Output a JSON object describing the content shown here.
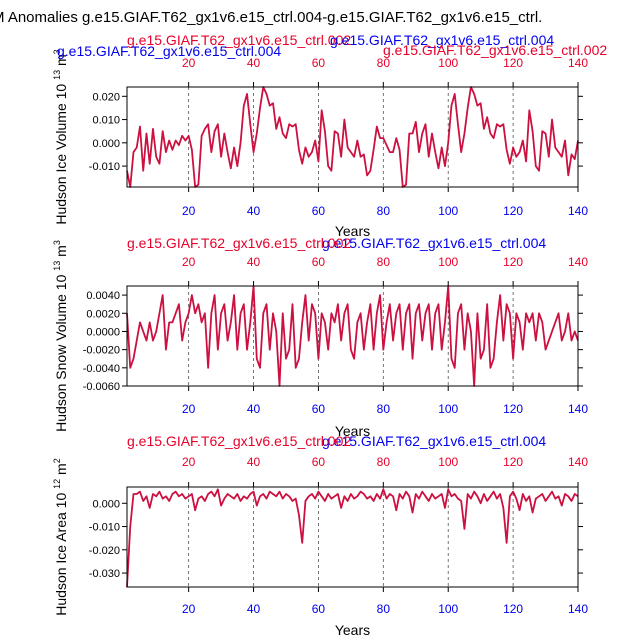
{
  "figure": {
    "title": "M Anomalies g.e15.GIAF.T62_gx1v6.e15_ctrl.004-g.e15.GIAF.T62_gx1v6.e15_ctrl.",
    "colors": {
      "red": "#e8002a",
      "blue": "#0000ee",
      "line": "#cc1040",
      "axis": "#000000",
      "grid": "#555555"
    }
  },
  "chart_data": [
    {
      "type": "line",
      "case_red": "g.e15.GIAF.T62_gx1v6.e15_ctrl.002",
      "case_blue": "g.e15.GIAF.T62_gx1v6.e15_ctrl.004",
      "ylabel": "Hudson Ice Volume 10",
      "ylabel_exp": "13",
      "ylabel_unit": "m",
      "ylabel_unit_exp": "3",
      "xlabel": "Years",
      "xlim": [
        1,
        140
      ],
      "ylim": [
        -0.019,
        0.024
      ],
      "yticks": [
        -0.01,
        0.0,
        0.01,
        0.02
      ],
      "yticklabels": [
        "-0.010",
        "0.000",
        "0.010",
        "0.020"
      ],
      "xticks": [
        20,
        40,
        60,
        80,
        100,
        120,
        140
      ],
      "xticklabels": [
        "20",
        "40",
        "60",
        "80",
        "100",
        "120",
        "140"
      ],
      "grid": "vertical dashed at x ticks",
      "x": [
        1,
        2,
        3,
        4,
        5,
        6,
        7,
        8,
        9,
        10,
        11,
        12,
        13,
        14,
        15,
        16,
        17,
        18,
        19,
        20,
        21,
        22,
        23,
        24,
        25,
        26,
        27,
        28,
        29,
        30,
        31,
        32,
        33,
        34,
        35,
        36,
        37,
        38,
        39,
        40,
        41,
        42,
        43,
        44,
        45,
        46,
        47,
        48,
        49,
        50,
        51,
        52,
        53,
        54,
        55,
        56,
        57,
        58,
        59,
        60,
        61,
        62,
        63,
        64,
        65,
        66,
        67,
        68,
        69,
        70,
        71,
        72,
        73,
        74,
        75,
        76,
        77,
        78,
        79,
        80,
        81,
        82,
        83,
        84,
        85,
        86,
        87,
        88,
        89,
        90,
        91,
        92,
        93,
        94,
        95,
        96,
        97,
        98,
        99,
        100,
        101,
        102,
        103,
        104,
        105,
        106,
        107,
        108,
        109,
        110,
        111,
        112,
        113,
        114,
        115,
        116,
        117,
        118,
        119,
        120,
        121,
        122,
        123,
        124,
        125,
        126,
        127,
        128,
        129,
        130,
        131,
        132,
        133,
        134,
        135,
        136,
        137,
        138,
        139,
        140
      ],
      "values": [
        -0.012,
        -0.019,
        -0.004,
        -0.002,
        0.007,
        -0.012,
        0.004,
        -0.009,
        0.006,
        -0.006,
        -0.009,
        0.005,
        -0.004,
        0.001,
        -0.003,
        0.001,
        -0.001,
        0.003,
        0.001,
        0.003,
        -0.003,
        -0.019,
        -0.018,
        0.003,
        0.006,
        0.008,
        -0.004,
        0.005,
        0.008,
        -0.006,
        0.004,
        -0.004,
        -0.011,
        -0.002,
        -0.01,
        0.0,
        0.016,
        0.021,
        0.008,
        -0.004,
        0.004,
        0.015,
        0.024,
        0.021,
        0.016,
        0.017,
        0.006,
        0.011,
        0.004,
        0.002,
        0.008,
        0.007,
        0.008,
        -0.003,
        -0.009,
        -0.002,
        -0.006,
        -0.004,
        0.001,
        -0.008,
        0.014,
        0.005,
        -0.01,
        -0.012,
        0.005,
        0.004,
        -0.006,
        0.01,
        -0.002,
        -0.004,
        -0.006,
        0.001,
        -0.006,
        -0.005,
        -0.014,
        -0.012,
        -0.003,
        0.007,
        0.002,
        0.002,
        -0.001,
        -0.004,
        -0.004,
        0.002,
        -0.003,
        -0.019,
        -0.018,
        0.004,
        0.004,
        0.009,
        -0.004,
        0.004,
        0.008,
        -0.006,
        0.004,
        -0.004,
        -0.011,
        -0.002,
        -0.01,
        0.0,
        0.016,
        0.021,
        0.008,
        -0.004,
        0.004,
        0.015,
        0.024,
        0.021,
        0.016,
        0.017,
        0.006,
        0.011,
        0.004,
        0.002,
        0.008,
        0.007,
        0.008,
        -0.003,
        -0.009,
        -0.002,
        -0.006,
        -0.004,
        0.001,
        -0.008,
        0.014,
        0.005,
        -0.01,
        -0.012,
        0.005,
        0.004,
        -0.006,
        0.01,
        -0.002,
        -0.004,
        -0.006,
        0.001,
        -0.014,
        -0.005,
        -0.007,
        0.001
      ]
    },
    {
      "type": "line",
      "case_red": "g.e15.GIAF.T62_gx1v6.e15_ctrl.002",
      "case_blue": "g.e15.GIAF.T62_gx1v6.e15_ctrl.004",
      "ylabel": "Hudson Snow Volume 10",
      "ylabel_exp": "13",
      "ylabel_unit": "m",
      "ylabel_unit_exp": "3",
      "xlabel": "Years",
      "xlim": [
        1,
        140
      ],
      "ylim": [
        -0.006,
        0.005
      ],
      "yticks": [
        -0.006,
        -0.004,
        -0.002,
        0.0,
        0.002,
        0.004
      ],
      "yticklabels": [
        "-0.0060",
        "-0.0040",
        "-0.0020",
        "0.0000",
        "0.0020",
        "0.0040"
      ],
      "xticks": [
        20,
        40,
        60,
        80,
        100,
        120,
        140
      ],
      "xticklabels": [
        "20",
        "40",
        "60",
        "80",
        "100",
        "120",
        "140"
      ],
      "grid": "vertical dashed at x ticks",
      "x": [
        1,
        2,
        3,
        4,
        5,
        6,
        7,
        8,
        9,
        10,
        11,
        12,
        13,
        14,
        15,
        16,
        17,
        18,
        19,
        20,
        21,
        22,
        23,
        24,
        25,
        26,
        27,
        28,
        29,
        30,
        31,
        32,
        33,
        34,
        35,
        36,
        37,
        38,
        39,
        40,
        41,
        42,
        43,
        44,
        45,
        46,
        47,
        48,
        49,
        50,
        51,
        52,
        53,
        54,
        55,
        56,
        57,
        58,
        59,
        60,
        61,
        62,
        63,
        64,
        65,
        66,
        67,
        68,
        69,
        70,
        71,
        72,
        73,
        74,
        75,
        76,
        77,
        78,
        79,
        80,
        81,
        82,
        83,
        84,
        85,
        86,
        87,
        88,
        89,
        90,
        91,
        92,
        93,
        94,
        95,
        96,
        97,
        98,
        99,
        100,
        101,
        102,
        103,
        104,
        105,
        106,
        107,
        108,
        109,
        110,
        111,
        112,
        113,
        114,
        115,
        116,
        117,
        118,
        119,
        120,
        121,
        122,
        123,
        124,
        125,
        126,
        127,
        128,
        129,
        130,
        131,
        132,
        133,
        134,
        135,
        136,
        137,
        138,
        139,
        140
      ],
      "values": [
        0.002,
        -0.004,
        -0.003,
        -0.001,
        0.001,
        0.0,
        -0.001,
        0.001,
        -0.001,
        0.0,
        0.002,
        0.004,
        -0.002,
        0.001,
        0.001,
        0.002,
        0.003,
        -0.001,
        0.001,
        0.002,
        0.004,
        0.002,
        0.003,
        0.001,
        0.002,
        -0.004,
        0.002,
        0.004,
        -0.002,
        0.002,
        0.003,
        -0.001,
        0.001,
        0.004,
        -0.002,
        0.002,
        0.003,
        -0.002,
        0.001,
        0.005,
        -0.003,
        -0.004,
        0.002,
        0.003,
        -0.002,
        0.002,
        0.0,
        -0.006,
        0.002,
        -0.003,
        -0.002,
        0.003,
        -0.004,
        -0.003,
        0.001,
        0.004,
        -0.001,
        0.003,
        0.002,
        -0.003,
        0.002,
        0.001,
        -0.002,
        0.002,
        0.001,
        0.003,
        -0.001,
        0.002,
        0.003,
        -0.002,
        -0.003,
        0.001,
        0.002,
        -0.002,
        0.001,
        0.003,
        -0.002,
        0.002,
        0.004,
        -0.002,
        0.001,
        0.003,
        -0.001,
        0.002,
        0.003,
        -0.002,
        0.002,
        0.003,
        -0.003,
        0.002,
        0.003,
        -0.001,
        0.002,
        0.003,
        -0.002,
        0.002,
        0.003,
        -0.002,
        0.001,
        0.005,
        -0.003,
        -0.004,
        0.002,
        0.003,
        -0.002,
        0.002,
        0.0,
        -0.006,
        0.002,
        -0.003,
        -0.002,
        0.003,
        -0.004,
        -0.003,
        0.001,
        0.004,
        -0.001,
        0.003,
        0.002,
        -0.003,
        0.002,
        0.001,
        -0.002,
        0.002,
        0.001,
        0.002,
        -0.001,
        0.002,
        0.001,
        -0.002,
        -0.001,
        0.0,
        0.001,
        0.002,
        -0.001,
        0.0,
        0.002,
        -0.001,
        0.0,
        -0.001
      ]
    },
    {
      "type": "line",
      "case_red": "g.e15.GIAF.T62_gx1v6.e15_ctrl.002",
      "case_blue": "g.e15.GIAF.T62_gx1v6.e15_ctrl.004",
      "ylabel": "Hudson Ice Area 10",
      "ylabel_exp": "12",
      "ylabel_unit": "m",
      "ylabel_unit_exp": "2",
      "xlabel": "Years",
      "xlim": [
        1,
        140
      ],
      "ylim": [
        -0.036,
        0.007
      ],
      "yticks": [
        -0.03,
        -0.02,
        -0.01,
        0.0
      ],
      "yticklabels": [
        "-0.030",
        "-0.020",
        "-0.010",
        "0.000"
      ],
      "xticks": [
        20,
        40,
        60,
        80,
        100,
        120,
        140
      ],
      "xticklabels": [
        "20",
        "40",
        "60",
        "80",
        "100",
        "120",
        "140"
      ],
      "grid": "vertical dashed at x ticks",
      "x": [
        1,
        2,
        3,
        4,
        5,
        6,
        7,
        8,
        9,
        10,
        11,
        12,
        13,
        14,
        15,
        16,
        17,
        18,
        19,
        20,
        21,
        22,
        23,
        24,
        25,
        26,
        27,
        28,
        29,
        30,
        31,
        32,
        33,
        34,
        35,
        36,
        37,
        38,
        39,
        40,
        41,
        42,
        43,
        44,
        45,
        46,
        47,
        48,
        49,
        50,
        51,
        52,
        53,
        54,
        55,
        56,
        57,
        58,
        59,
        60,
        61,
        62,
        63,
        64,
        65,
        66,
        67,
        68,
        69,
        70,
        71,
        72,
        73,
        74,
        75,
        76,
        77,
        78,
        79,
        80,
        81,
        82,
        83,
        84,
        85,
        86,
        87,
        88,
        89,
        90,
        91,
        92,
        93,
        94,
        95,
        96,
        97,
        98,
        99,
        100,
        101,
        102,
        103,
        104,
        105,
        106,
        107,
        108,
        109,
        110,
        111,
        112,
        113,
        114,
        115,
        116,
        117,
        118,
        119,
        120,
        121,
        122,
        123,
        124,
        125,
        126,
        127,
        128,
        129,
        130,
        131,
        132,
        133,
        134,
        135,
        136,
        137,
        138,
        139,
        140
      ],
      "values": [
        -0.036,
        -0.01,
        0.004,
        0.004,
        0.005,
        0.001,
        0.003,
        -0.002,
        0.004,
        0.003,
        0.005,
        0.002,
        0.003,
        0.001,
        0.004,
        0.005,
        0.003,
        0.004,
        0.002,
        0.003,
        0.004,
        -0.003,
        0.002,
        0.003,
        0.001,
        0.004,
        0.005,
        0.003,
        0.006,
        -0.001,
        0.002,
        0.004,
        0.003,
        0.002,
        0.004,
        0.001,
        0.003,
        0.002,
        0.004,
        0.005,
        -0.001,
        0.003,
        0.004,
        0.002,
        0.005,
        0.004,
        0.003,
        0.005,
        0.002,
        0.004,
        0.003,
        0.001,
        0.002,
        -0.005,
        -0.017,
        0.001,
        0.003,
        0.004,
        0.002,
        0.005,
        0.003,
        0.001,
        0.004,
        0.002,
        0.003,
        0.004,
        -0.002,
        0.003,
        0.001,
        0.004,
        0.002,
        0.003,
        0.005,
        0.004,
        0.002,
        0.003,
        0.001,
        0.004,
        0.002,
        0.006,
        0.002,
        0.004,
        0.003,
        -0.003,
        0.004,
        0.002,
        0.005,
        0.003,
        -0.004,
        0.004,
        0.002,
        0.005,
        0.003,
        0.001,
        0.004,
        0.002,
        0.003,
        0.004,
        -0.002,
        0.006,
        0.003,
        0.004,
        0.002,
        0.001,
        -0.011,
        0.004,
        0.002,
        0.005,
        0.003,
        0.0,
        0.004,
        0.001,
        0.003,
        0.005,
        0.002,
        0.004,
        -0.002,
        -0.017,
        0.003,
        0.005,
        0.002,
        -0.003,
        0.004,
        0.001,
        0.003,
        -0.004,
        0.002,
        0.003,
        0.004,
        0.001,
        0.003,
        0.005,
        0.002,
        0.003,
        -0.001,
        0.004,
        0.003,
        0.001,
        0.004,
        0.003
      ]
    }
  ]
}
